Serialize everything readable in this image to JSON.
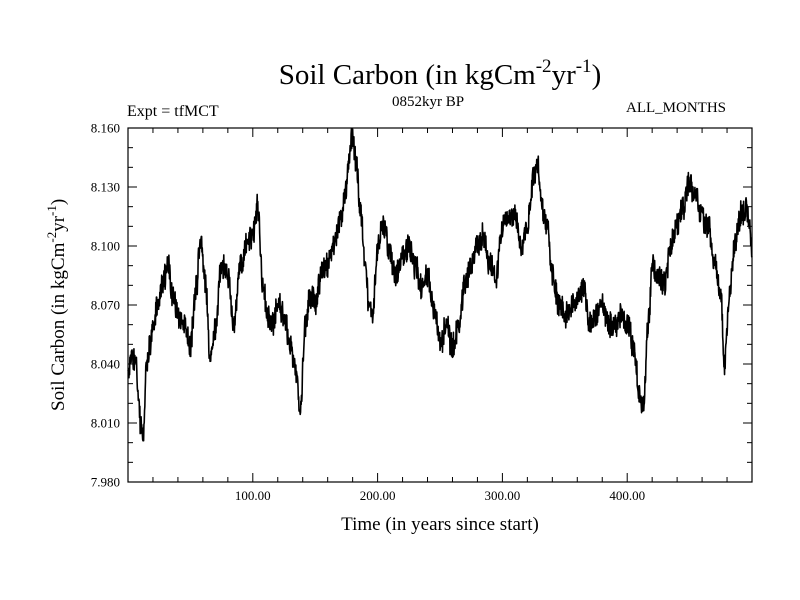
{
  "chart_data": {
    "type": "line",
    "title": "Soil Carbon (in kgCm",
    "title_exp1": "-2",
    "title_mid": "yr",
    "title_exp2": "-1",
    "title_end": ")",
    "subtitle_left": "Expt = tfMCT",
    "subtitle_center": "0852kyr BP",
    "subtitle_right": "ALL_MONTHS",
    "xlabel": "Time (in years since start)",
    "ylabel": "Soil Carbon (in kgCm",
    "ylabel_exp1": "-2",
    "ylabel_mid": "yr",
    "ylabel_exp2": "-1",
    "ylabel_end": ")",
    "xlim": [
      0,
      500
    ],
    "ylim": [
      7.98,
      8.16
    ],
    "xticks": [
      100,
      200,
      300,
      400
    ],
    "xtick_labels": [
      "100.00",
      "200.00",
      "300.00",
      "400.00"
    ],
    "yticks": [
      7.98,
      8.01,
      8.04,
      8.07,
      8.1,
      8.13,
      8.16
    ],
    "ytick_labels": [
      "7.980",
      "8.010",
      "8.040",
      "8.070",
      "8.100",
      "8.130",
      "8.160"
    ],
    "grid": false,
    "series": [
      {
        "name": "Soil Carbon",
        "color": "#000000",
        "x": [
          0,
          3,
          6,
          9,
          10,
          12,
          15,
          18,
          20,
          24,
          28,
          32,
          36,
          40,
          45,
          50,
          55,
          58,
          62,
          66,
          70,
          75,
          80,
          85,
          90,
          95,
          100,
          104,
          108,
          112,
          116,
          120,
          125,
          130,
          135,
          138,
          142,
          146,
          150,
          155,
          160,
          165,
          170,
          175,
          178,
          180,
          183,
          186,
          190,
          193,
          196,
          200,
          205,
          210,
          215,
          220,
          225,
          230,
          235,
          240,
          245,
          250,
          255,
          260,
          265,
          270,
          275,
          280,
          285,
          290,
          295,
          300,
          305,
          310,
          315,
          320,
          325,
          328,
          332,
          336,
          340,
          345,
          350,
          355,
          360,
          365,
          370,
          375,
          380,
          385,
          390,
          395,
          400,
          405,
          410,
          413,
          417,
          420,
          425,
          430,
          435,
          440,
          445,
          450,
          455,
          460,
          465,
          470,
          475,
          478,
          482,
          486,
          490,
          495,
          498,
          500
        ],
        "y": [
          8.035,
          8.045,
          8.04,
          8.02,
          8.008,
          8.003,
          8.04,
          8.05,
          8.06,
          8.07,
          8.082,
          8.09,
          8.075,
          8.065,
          8.06,
          8.05,
          8.08,
          8.105,
          8.082,
          8.04,
          8.06,
          8.09,
          8.085,
          8.06,
          8.09,
          8.1,
          8.105,
          8.12,
          8.08,
          8.065,
          8.06,
          8.07,
          8.065,
          8.05,
          8.035,
          8.015,
          8.06,
          8.075,
          8.07,
          8.085,
          8.09,
          8.1,
          8.112,
          8.13,
          8.15,
          8.158,
          8.14,
          8.12,
          8.095,
          8.068,
          8.065,
          8.1,
          8.11,
          8.095,
          8.085,
          8.095,
          8.1,
          8.09,
          8.08,
          8.085,
          8.07,
          8.05,
          8.06,
          8.048,
          8.06,
          8.08,
          8.09,
          8.1,
          8.105,
          8.09,
          8.085,
          8.11,
          8.115,
          8.118,
          8.1,
          8.11,
          8.135,
          8.14,
          8.12,
          8.11,
          8.085,
          8.07,
          8.065,
          8.07,
          8.075,
          8.08,
          8.06,
          8.065,
          8.07,
          8.06,
          8.06,
          8.065,
          8.06,
          8.05,
          8.025,
          8.018,
          8.06,
          8.09,
          8.085,
          8.08,
          8.1,
          8.11,
          8.12,
          8.132,
          8.125,
          8.115,
          8.11,
          8.09,
          8.075,
          8.04,
          8.075,
          8.1,
          8.115,
          8.12,
          8.11,
          8.095
        ]
      }
    ]
  }
}
